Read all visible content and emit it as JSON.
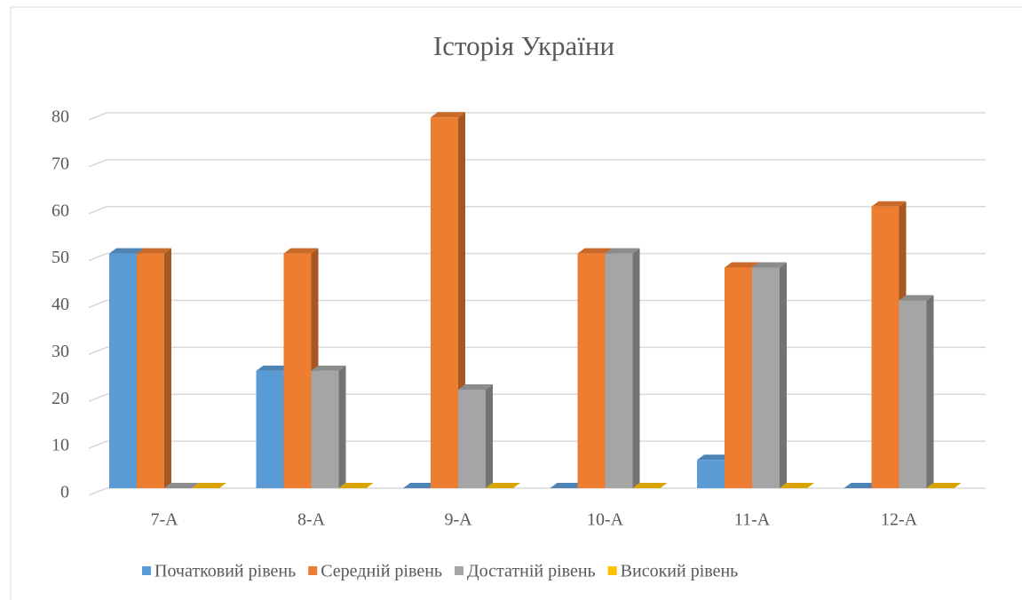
{
  "chart_data": {
    "type": "bar3d",
    "title": "Історія України",
    "categories": [
      "7-A",
      "8-A",
      "9-A",
      "10-A",
      "11-A",
      "12-A"
    ],
    "series": [
      {
        "name": "Початковий рівень",
        "color": "#5b9bd5",
        "values": [
          50,
          25,
          0,
          0,
          6,
          0
        ]
      },
      {
        "name": "Середній рівень",
        "color": "#ed7d31",
        "values": [
          50,
          50,
          79,
          50,
          47,
          60
        ]
      },
      {
        "name": "Достатній рівень",
        "color": "#a5a5a5",
        "values": [
          0,
          25,
          21,
          50,
          47,
          40
        ]
      },
      {
        "name": "Високий рівень",
        "color": "#ffc000",
        "values": [
          0,
          0,
          0,
          0,
          0,
          0
        ]
      }
    ],
    "ylim": [
      0,
      80
    ],
    "yticks": [
      0,
      10,
      20,
      30,
      40,
      50,
      60,
      70,
      80
    ],
    "grid": true,
    "legend": "bottom"
  }
}
